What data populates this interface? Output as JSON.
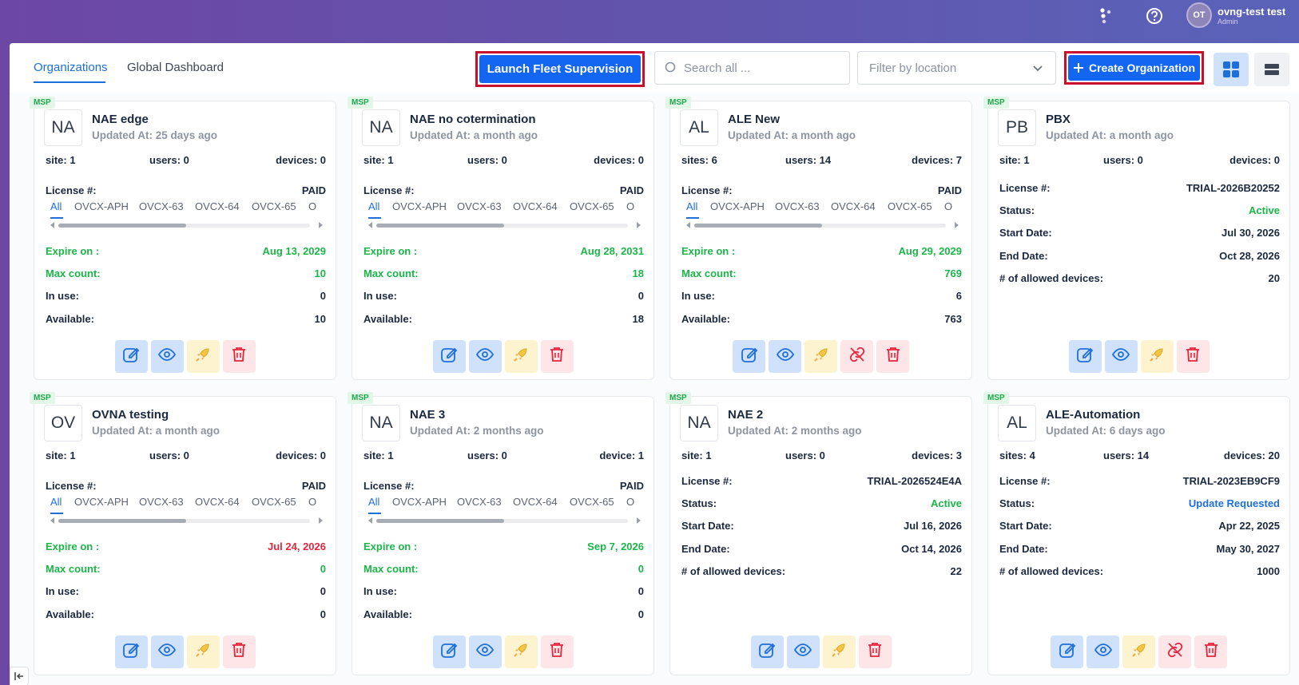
{
  "user": {
    "initials": "OT",
    "name": "ovng-test test",
    "role": "Admin"
  },
  "header": {
    "tabs": [
      {
        "label": "Organizations",
        "active": true
      },
      {
        "label": "Global Dashboard",
        "active": false
      }
    ],
    "launch_label": "Launch Fleet Supervision",
    "search_placeholder": "Search all ...",
    "filter_placeholder": "Filter by location",
    "create_label": "Create Organization"
  },
  "labels": {
    "msp": "MSP",
    "license": "License #:",
    "expire": "Expire on :",
    "max_count": "Max count:",
    "in_use": "In use:",
    "available": "Available:",
    "status": "Status:",
    "start_date": "Start Date:",
    "end_date": "End Date:",
    "allowed": "# of allowed devices:"
  },
  "license_tabs": [
    "All",
    "OVCX-APH",
    "OVCX-63",
    "OVCX-64",
    "OVCX-65",
    "O"
  ],
  "cards": [
    {
      "initials": "NA",
      "name": "NAE edge",
      "updated": "Updated At: 25 days ago",
      "site": "site: 1",
      "users": "users: 0",
      "devices": "devices: 0",
      "type": "paid",
      "license": "PAID",
      "expire": "Aug 13, 2029",
      "expire_color": "green",
      "max_count": "10",
      "in_use": "0",
      "available": "10",
      "link_action": false
    },
    {
      "initials": "NA",
      "name": "NAE no cotermination",
      "updated": "Updated At: a month ago",
      "site": "site: 1",
      "users": "users: 0",
      "devices": "devices: 0",
      "type": "paid",
      "license": "PAID",
      "expire": "Aug 28, 2031",
      "expire_color": "green",
      "max_count": "18",
      "in_use": "0",
      "available": "18",
      "link_action": false
    },
    {
      "initials": "AL",
      "name": "ALE New",
      "updated": "Updated At: a month ago",
      "site": "sites: 6",
      "users": "users: 14",
      "devices": "devices: 7",
      "type": "paid",
      "license": "PAID",
      "expire": "Aug 29, 2029",
      "expire_color": "green",
      "max_count": "769",
      "in_use": "6",
      "available": "763",
      "link_action": true
    },
    {
      "initials": "PB",
      "name": "PBX",
      "updated": "Updated At: a month ago",
      "site": "site: 1",
      "users": "users: 0",
      "devices": "devices: 0",
      "type": "trial",
      "license": "TRIAL-2026B20252",
      "status": "Active",
      "status_color": "green",
      "start": "Jul 30, 2026",
      "end": "Oct 28, 2026",
      "allowed": "20",
      "link_action": false
    },
    {
      "initials": "OV",
      "name": "OVNA testing",
      "updated": "Updated At: a month ago",
      "site": "site: 1",
      "users": "users: 0",
      "devices": "devices: 0",
      "type": "paid",
      "license": "PAID",
      "expire": "Jul 24, 2026",
      "expire_color": "red",
      "max_count": "0",
      "in_use": "0",
      "available": "0",
      "link_action": false
    },
    {
      "initials": "NA",
      "name": "NAE 3",
      "updated": "Updated At: 2 months ago",
      "site": "site: 1",
      "users": "users: 0",
      "devices": "device: 1",
      "type": "paid",
      "license": "PAID",
      "expire": "Sep 7, 2026",
      "expire_color": "green",
      "max_count": "0",
      "in_use": "0",
      "available": "0",
      "link_action": false
    },
    {
      "initials": "NA",
      "name": "NAE 2",
      "updated": "Updated At: 2 months ago",
      "site": "site: 1",
      "users": "users: 0",
      "devices": "devices: 3",
      "type": "trial",
      "license": "TRIAL-2026524E4A",
      "status": "Active",
      "status_color": "green",
      "start": "Jul 16, 2026",
      "end": "Oct 14, 2026",
      "allowed": "22",
      "link_action": false
    },
    {
      "initials": "AL",
      "name": "ALE-Automation",
      "updated": "Updated At: 6 days ago",
      "site": "sites: 4",
      "users": "users: 14",
      "devices": "devices: 20",
      "type": "trial",
      "license": "TRIAL-2023EB9CF9",
      "status": "Update Requested",
      "status_color": "blue",
      "start": "Apr 22, 2025",
      "end": "May 30, 2027",
      "allowed": "1000",
      "link_action": true
    }
  ]
}
